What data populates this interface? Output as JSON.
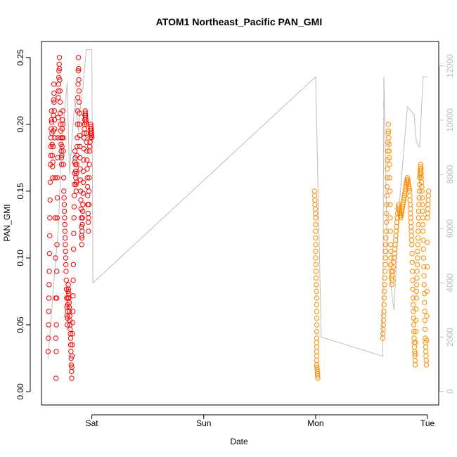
{
  "chart_data": {
    "type": "scatter",
    "title": "ATOM1 Northeast_Pacific PAN_GMI",
    "xlabel": "Date",
    "ylabel": "PAN_GMI",
    "x_ticks": [
      "Sat",
      "Sun",
      "Mon",
      "Tue"
    ],
    "xlim": [
      -0.45,
      3.1
    ],
    "ylim": [
      -0.01,
      0.262
    ],
    "y_ticks": [
      0.0,
      0.05,
      0.1,
      0.15,
      0.2,
      0.25
    ],
    "y_tick_labels": [
      "0.00",
      "0.05",
      "0.10",
      "0.15",
      "0.20",
      "0.25"
    ],
    "y2lim": [
      -500,
      12900
    ],
    "y2_ticks": [
      0,
      2000,
      4000,
      6000,
      8000,
      10000,
      12000
    ],
    "grid": false,
    "legend": "none",
    "series": [
      {
        "marker": "open-circle",
        "color": "#ff0000",
        "segments": [
          [
            -0.39,
            0.03
          ],
          [
            -0.38,
            0.09
          ],
          [
            -0.37,
            0.17
          ],
          [
            -0.36,
            0.21
          ],
          [
            -0.35,
            0.16
          ],
          [
            -0.34,
            0.23
          ],
          [
            -0.33,
            0.19
          ],
          [
            -0.32,
            0.01
          ],
          [
            -0.31,
            0.13
          ],
          [
            -0.3,
            0.22
          ],
          [
            -0.29,
            0.25
          ],
          [
            -0.28,
            0.2
          ],
          [
            -0.27,
            0.17
          ],
          [
            -0.26,
            0.21
          ],
          [
            -0.25,
            0.15
          ],
          [
            -0.24,
            0.12
          ],
          [
            -0.23,
            0.09
          ],
          [
            -0.22,
            0.05
          ],
          [
            -0.21,
            0.08
          ],
          [
            -0.2,
            0.06
          ],
          [
            -0.19,
            0.04
          ],
          [
            -0.18,
            0.01
          ],
          [
            -0.17,
            0.06
          ],
          [
            -0.16,
            0.13
          ],
          [
            -0.15,
            0.18
          ],
          [
            -0.14,
            0.15
          ],
          [
            -0.13,
            0.19
          ],
          [
            -0.12,
            0.25
          ],
          [
            -0.11,
            0.2
          ],
          [
            -0.1,
            0.15
          ],
          [
            -0.09,
            0.11
          ],
          [
            -0.08,
            0.14
          ],
          [
            -0.07,
            0.19
          ],
          [
            -0.06,
            0.21
          ],
          [
            -0.05,
            0.2
          ],
          [
            -0.04,
            0.16
          ],
          [
            -0.03,
            0.12
          ],
          [
            -0.02,
            0.18
          ],
          [
            -0.01,
            0.2
          ],
          [
            0.0,
            0.19
          ]
        ]
      },
      {
        "marker": "open-circle",
        "color": "#ff8c00",
        "segments": [
          [
            1.99,
            0.15
          ],
          [
            2.0,
            0.13
          ],
          [
            2.0,
            0.1
          ],
          [
            2.01,
            0.07
          ],
          [
            2.01,
            0.04
          ],
          [
            2.01,
            0.02
          ],
          [
            2.02,
            0.01
          ],
          [
            2.6,
            0.04
          ],
          [
            2.61,
            0.06
          ],
          [
            2.62,
            0.09
          ],
          [
            2.63,
            0.12
          ],
          [
            2.64,
            0.16
          ],
          [
            2.65,
            0.2
          ],
          [
            2.66,
            0.17
          ],
          [
            2.67,
            0.11
          ],
          [
            2.68,
            0.08
          ],
          [
            2.7,
            0.1
          ],
          [
            2.72,
            0.12
          ],
          [
            2.74,
            0.14
          ],
          [
            2.76,
            0.13
          ],
          [
            2.78,
            0.14
          ],
          [
            2.8,
            0.15
          ],
          [
            2.82,
            0.16
          ],
          [
            2.84,
            0.15
          ],
          [
            2.85,
            0.13
          ],
          [
            2.86,
            0.11
          ],
          [
            2.87,
            0.07
          ],
          [
            2.88,
            0.04
          ],
          [
            2.89,
            0.02
          ],
          [
            2.9,
            0.07
          ],
          [
            2.91,
            0.1
          ],
          [
            2.92,
            0.13
          ],
          [
            2.93,
            0.16
          ],
          [
            2.94,
            0.17
          ],
          [
            2.95,
            0.15
          ],
          [
            2.96,
            0.12
          ],
          [
            2.97,
            0.08
          ],
          [
            2.98,
            0.04
          ],
          [
            2.99,
            0.02
          ],
          [
            3.0,
            0.13
          ],
          [
            3.01,
            0.15
          ]
        ]
      }
    ],
    "secondary_line": {
      "color": "#bdbdbd",
      "axis": "right",
      "points": [
        [
          -0.39,
          1200
        ],
        [
          -0.35,
          3500
        ],
        [
          -0.3,
          6000
        ],
        [
          -0.27,
          9000
        ],
        [
          -0.22,
          11400
        ],
        [
          -0.2,
          8000
        ],
        [
          -0.15,
          10800
        ],
        [
          -0.12,
          9600
        ],
        [
          -0.1,
          10600
        ],
        [
          -0.08,
          11200
        ],
        [
          -0.05,
          12600
        ],
        [
          -0.02,
          12600
        ],
        [
          0.0,
          12600
        ],
        [
          0.01,
          4000
        ],
        [
          2.0,
          11600
        ],
        [
          2.05,
          2000
        ],
        [
          2.6,
          1300
        ],
        [
          2.61,
          11600
        ],
        [
          2.64,
          5000
        ],
        [
          2.7,
          3000
        ],
        [
          2.75,
          7000
        ],
        [
          2.82,
          10500
        ],
        [
          2.84,
          10400
        ],
        [
          2.88,
          10200
        ],
        [
          2.9,
          9200
        ],
        [
          2.93,
          9000
        ],
        [
          2.96,
          11600
        ],
        [
          2.98,
          11600
        ],
        [
          3.0,
          11600
        ]
      ]
    }
  }
}
